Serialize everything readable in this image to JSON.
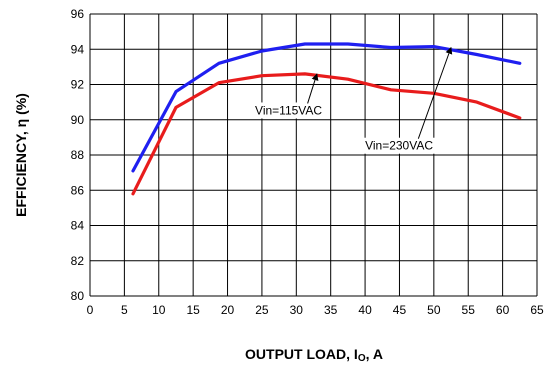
{
  "chart_data": {
    "type": "line",
    "xlabel": "OUTPUT LOAD, I",
    "xlabel_sub": "O",
    "xlabel_suffix": ", A",
    "ylabel": "EFFICIENCY, η  (%)",
    "xlim": [
      0,
      65
    ],
    "ylim": [
      80,
      96
    ],
    "xticks": [
      0,
      5,
      10,
      15,
      20,
      25,
      30,
      35,
      40,
      45,
      50,
      55,
      60,
      65
    ],
    "yticks": [
      80,
      82,
      84,
      86,
      88,
      90,
      92,
      94,
      96
    ],
    "grid": true,
    "series": [
      {
        "color": "#1f1ff0",
        "x": [
          6.25,
          12.5,
          18.75,
          25,
          31.25,
          37.5,
          43.75,
          50,
          56.25,
          62.5
        ],
        "y": [
          87.1,
          91.6,
          93.2,
          93.9,
          94.3,
          94.3,
          94.1,
          94.15,
          93.7,
          93.2
        ]
      },
      {
        "color": "#e81c1c",
        "x": [
          6.25,
          12.5,
          18.75,
          25,
          31.25,
          37.5,
          43.75,
          50,
          56.25,
          62.5
        ],
        "y": [
          85.8,
          90.7,
          92.1,
          92.5,
          92.6,
          92.3,
          91.7,
          91.5,
          91.0,
          90.1
        ]
      }
    ],
    "annotations": [
      {
        "text": "Vin=115VAC",
        "label_x": 24,
        "label_y": 90.3,
        "arrow_to_x": 33,
        "arrow_to_y": 92.6
      },
      {
        "text": "Vin=230VAC",
        "label_x": 40,
        "label_y": 88.3,
        "arrow_to_x": 52.5,
        "arrow_to_y": 94.1
      }
    ]
  }
}
